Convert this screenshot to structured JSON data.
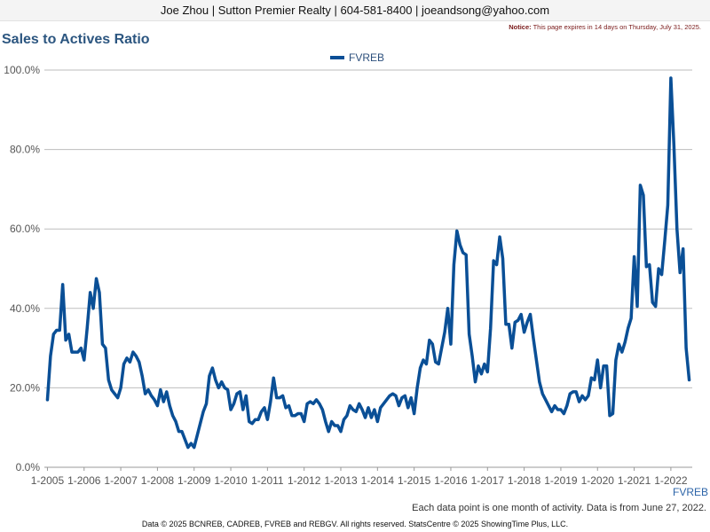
{
  "header": {
    "contact": "Joe Zhou | Sutton Premier Realty | 604-581-8400 | joeandsong@yahoo.com"
  },
  "notice": {
    "label": "Notice:",
    "text": "This page expires in 14 days on Thursday, July 31, 2025."
  },
  "footer": {
    "series_tag": "FVREB",
    "note": "Each data point is one month of activity. Data is from June 27, 2022.",
    "copyright": "Data © 2025 BCNREB, CADREB, FVREB and REBGV. All rights reserved. StatsCentre © 2025 ShowingTime Plus, LLC."
  },
  "colors": {
    "series": "#0a4f96",
    "grid": "#bdbdbd",
    "title": "#2c5680"
  },
  "chart_data": {
    "type": "line",
    "title": "Sales to Actives Ratio",
    "xlabel": "",
    "ylabel": "",
    "ylim": [
      0,
      100
    ],
    "grid": true,
    "legend_placement": "top-center",
    "y_ticks": [
      "0.0%",
      "20.0%",
      "40.0%",
      "60.0%",
      "80.0%",
      "100.0%"
    ],
    "y_tick_values": [
      0,
      20,
      40,
      60,
      80,
      100
    ],
    "x_ticks": [
      "1-2005",
      "1-2006",
      "1-2007",
      "1-2008",
      "1-2009",
      "1-2010",
      "1-2011",
      "1-2012",
      "1-2013",
      "1-2014",
      "1-2015",
      "1-2016",
      "1-2017",
      "1-2018",
      "1-2019",
      "1-2020",
      "1-2021",
      "1-2022"
    ],
    "x_tick_dates": [
      "2005-01",
      "2006-01",
      "2007-01",
      "2008-01",
      "2009-01",
      "2010-01",
      "2011-01",
      "2012-01",
      "2013-01",
      "2014-01",
      "2015-01",
      "2016-01",
      "2017-01",
      "2018-01",
      "2019-01",
      "2020-01",
      "2021-01",
      "2022-01"
    ],
    "x_start": "2004-12",
    "x_end": "2022-08",
    "series": [
      {
        "name": "FVREB",
        "x": [
          "2005-01",
          "2005-02",
          "2005-03",
          "2005-04",
          "2005-05",
          "2005-06",
          "2005-07",
          "2005-08",
          "2005-09",
          "2005-10",
          "2005-11",
          "2005-12",
          "2006-01",
          "2006-02",
          "2006-03",
          "2006-04",
          "2006-05",
          "2006-06",
          "2006-07",
          "2006-08",
          "2006-09",
          "2006-10",
          "2006-11",
          "2006-12",
          "2007-01",
          "2007-02",
          "2007-03",
          "2007-04",
          "2007-05",
          "2007-06",
          "2007-07",
          "2007-08",
          "2007-09",
          "2007-10",
          "2007-11",
          "2007-12",
          "2008-01",
          "2008-02",
          "2008-03",
          "2008-04",
          "2008-05",
          "2008-06",
          "2008-07",
          "2008-08",
          "2008-09",
          "2008-10",
          "2008-11",
          "2008-12",
          "2009-01",
          "2009-02",
          "2009-03",
          "2009-04",
          "2009-05",
          "2009-06",
          "2009-07",
          "2009-08",
          "2009-09",
          "2009-10",
          "2009-11",
          "2009-12",
          "2010-01",
          "2010-02",
          "2010-03",
          "2010-04",
          "2010-05",
          "2010-06",
          "2010-07",
          "2010-08",
          "2010-09",
          "2010-10",
          "2010-11",
          "2010-12",
          "2011-01",
          "2011-02",
          "2011-03",
          "2011-04",
          "2011-05",
          "2011-06",
          "2011-07",
          "2011-08",
          "2011-09",
          "2011-10",
          "2011-11",
          "2011-12",
          "2012-01",
          "2012-02",
          "2012-03",
          "2012-04",
          "2012-05",
          "2012-06",
          "2012-07",
          "2012-08",
          "2012-09",
          "2012-10",
          "2012-11",
          "2012-12",
          "2013-01",
          "2013-02",
          "2013-03",
          "2013-04",
          "2013-05",
          "2013-06",
          "2013-07",
          "2013-08",
          "2013-09",
          "2013-10",
          "2013-11",
          "2013-12",
          "2014-01",
          "2014-02",
          "2014-03",
          "2014-04",
          "2014-05",
          "2014-06",
          "2014-07",
          "2014-08",
          "2014-09",
          "2014-10",
          "2014-11",
          "2014-12",
          "2015-01",
          "2015-02",
          "2015-03",
          "2015-04",
          "2015-05",
          "2015-06",
          "2015-07",
          "2015-08",
          "2015-09",
          "2015-10",
          "2015-11",
          "2015-12",
          "2016-01",
          "2016-02",
          "2016-03",
          "2016-04",
          "2016-05",
          "2016-06",
          "2016-07",
          "2016-08",
          "2016-09",
          "2016-10",
          "2016-11",
          "2016-12",
          "2017-01",
          "2017-02",
          "2017-03",
          "2017-04",
          "2017-05",
          "2017-06",
          "2017-07",
          "2017-08",
          "2017-09",
          "2017-10",
          "2017-11",
          "2017-12",
          "2018-01",
          "2018-02",
          "2018-03",
          "2018-04",
          "2018-05",
          "2018-06",
          "2018-07",
          "2018-08",
          "2018-09",
          "2018-10",
          "2018-11",
          "2018-12",
          "2019-01",
          "2019-02",
          "2019-03",
          "2019-04",
          "2019-05",
          "2019-06",
          "2019-07",
          "2019-08",
          "2019-09",
          "2019-10",
          "2019-11",
          "2019-12",
          "2020-01",
          "2020-02",
          "2020-03",
          "2020-04",
          "2020-05",
          "2020-06",
          "2020-07",
          "2020-08",
          "2020-09",
          "2020-10",
          "2020-11",
          "2020-12",
          "2021-01",
          "2021-02",
          "2021-03",
          "2021-04",
          "2021-05",
          "2021-06",
          "2021-07",
          "2021-08",
          "2021-09",
          "2021-10",
          "2021-11",
          "2021-12",
          "2022-01",
          "2022-02",
          "2022-03",
          "2022-04",
          "2022-05",
          "2022-06",
          "2022-07"
        ],
        "values": [
          17.0,
          28.0,
          33.5,
          34.5,
          34.5,
          46.0,
          32.0,
          33.5,
          29.0,
          29.0,
          29.0,
          30.0,
          27.0,
          35.0,
          44.0,
          40.0,
          47.5,
          44.0,
          31.0,
          30.0,
          22.0,
          19.5,
          18.5,
          17.5,
          20.0,
          26.0,
          27.5,
          26.5,
          29.0,
          28.0,
          26.5,
          23.0,
          18.5,
          19.5,
          18.0,
          17.0,
          15.5,
          19.5,
          16.5,
          19.0,
          15.5,
          13.0,
          11.5,
          9.0,
          9.0,
          7.0,
          5.0,
          6.0,
          5.0,
          8.0,
          11.0,
          14.0,
          16.0,
          23.0,
          25.0,
          22.0,
          20.0,
          21.5,
          20.0,
          19.5,
          14.5,
          16.0,
          18.5,
          19.0,
          14.5,
          18.0,
          11.5,
          11.0,
          12.0,
          12.0,
          14.0,
          15.0,
          12.0,
          16.5,
          22.5,
          17.5,
          17.5,
          18.0,
          15.0,
          15.5,
          13.0,
          13.0,
          13.5,
          13.5,
          11.5,
          16.0,
          16.5,
          16.0,
          17.0,
          16.0,
          14.5,
          11.5,
          9.0,
          11.5,
          10.5,
          10.5,
          9.0,
          12.0,
          13.0,
          15.5,
          14.5,
          14.0,
          16.0,
          14.5,
          12.5,
          15.0,
          12.5,
          14.5,
          11.5,
          15.0,
          16.0,
          17.0,
          18.0,
          18.5,
          18.0,
          15.5,
          17.5,
          18.0,
          15.0,
          17.5,
          13.5,
          20.0,
          25.0,
          27.0,
          26.0,
          32.0,
          31.0,
          26.5,
          26.0,
          30.0,
          34.0,
          40.0,
          31.0,
          51.0,
          59.5,
          56.0,
          54.0,
          53.5,
          33.5,
          28.0,
          21.5,
          25.5,
          23.5,
          26.0,
          24.0,
          35.0,
          52.0,
          51.0,
          58.0,
          52.5,
          36.0,
          36.0,
          30.0,
          36.5,
          37.0,
          38.5,
          34.0,
          36.5,
          38.5,
          32.5,
          27.0,
          21.5,
          18.5,
          17.0,
          15.5,
          14.0,
          15.5,
          14.5,
          14.5,
          13.5,
          15.5,
          18.5,
          19.0,
          19.0,
          16.5,
          18.0,
          17.0,
          18.0,
          22.5,
          22.0,
          27.0,
          20.0,
          25.5,
          25.5,
          13.0,
          13.5,
          27.0,
          31.0,
          29.0,
          31.5,
          35.0,
          37.5,
          53.0,
          40.5,
          71.0,
          68.5,
          50.5,
          51.0,
          41.5,
          40.5,
          50.0,
          48.5,
          57.0,
          66.0,
          98.0,
          81.0,
          60.0,
          49.0,
          55.0,
          30.0,
          22.0
        ]
      }
    ]
  }
}
